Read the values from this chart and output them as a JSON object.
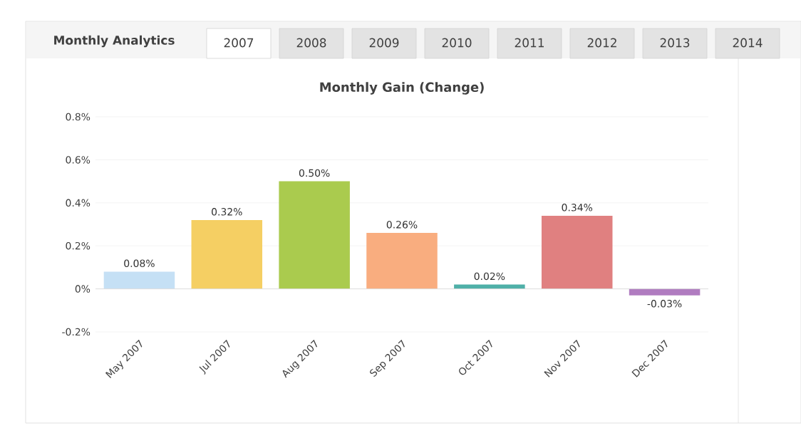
{
  "chart_data": {
    "type": "bar",
    "title": "Monthly Gain (Change)",
    "categories": [
      "May 2007",
      "Jul 2007",
      "Aug 2007",
      "Sep 2007",
      "Oct 2007",
      "Nov 2007",
      "Dec 2007"
    ],
    "values": [
      0.08,
      0.32,
      0.5,
      0.26,
      0.02,
      0.34,
      -0.03
    ],
    "colors": [
      "#c5e0f5",
      "#f5cf63",
      "#aacb4e",
      "#f9ad7f",
      "#4fb0a8",
      "#e08080",
      "#b07cc0"
    ],
    "value_labels": [
      "0.08%",
      "0.32%",
      "0.50%",
      "0.26%",
      "0.02%",
      "0.34%",
      "-0.03%"
    ],
    "ylim": [
      -0.2,
      0.8
    ],
    "yticks": [
      {
        "value": -0.2,
        "label": "-0.2%"
      },
      {
        "value": 0,
        "label": "0%"
      },
      {
        "value": 0.2,
        "label": "0.2%"
      },
      {
        "value": 0.4,
        "label": "0.4%"
      },
      {
        "value": 0.6,
        "label": "0.6%"
      },
      {
        "value": 0.8,
        "label": "0.8%"
      }
    ],
    "grid": "y",
    "annotations": [
      "Monthly Analytics",
      "2007",
      "2008",
      "2009",
      "2010",
      "2011",
      "2012",
      "2013",
      "2014"
    ]
  }
}
